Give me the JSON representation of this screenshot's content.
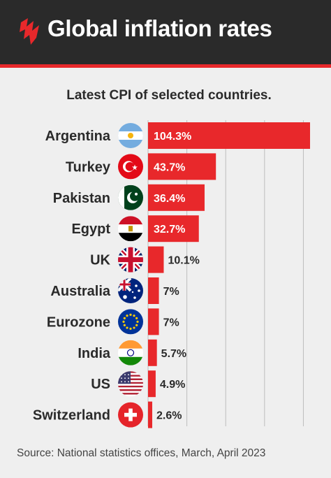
{
  "header": {
    "title": "Global inflation rates"
  },
  "subtitle": "Latest CPI of selected countries.",
  "source": "Source: National statistics offices, March, April 2023",
  "colors": {
    "header_bg": "#2a2a2a",
    "accent": "#e8282b",
    "background": "#efefef"
  },
  "chart_data": {
    "type": "bar",
    "orientation": "horizontal",
    "categories": [
      "Argentina",
      "Turkey",
      "Pakistan",
      "Egypt",
      "UK",
      "Australia",
      "Eurozone",
      "India",
      "US",
      "Switzerland"
    ],
    "values": [
      104.3,
      43.7,
      36.4,
      32.7,
      10.1,
      7,
      7,
      5.7,
      4.9,
      2.6
    ],
    "labels": [
      "104.3%",
      "43.7%",
      "36.4%",
      "32.7%",
      "10.1%",
      "7%",
      "7%",
      "5.7%",
      "4.9%",
      "2.6%"
    ],
    "flags": [
      "argentina-flag-icon",
      "turkey-flag-icon",
      "pakistan-flag-icon",
      "egypt-flag-icon",
      "uk-flag-icon",
      "australia-flag-icon",
      "eurozone-flag-icon",
      "india-flag-icon",
      "us-flag-icon",
      "switzerland-flag-icon"
    ],
    "xlim": [
      0,
      104.3
    ],
    "grid": true,
    "bar_color": "#e8282b"
  }
}
